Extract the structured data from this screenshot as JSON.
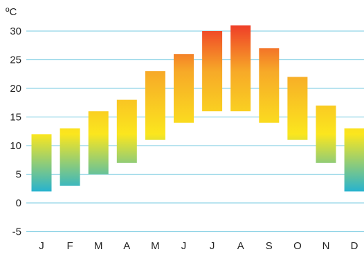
{
  "chart_data": {
    "type": "bar",
    "subtype": "floating-range",
    "unit_label": "ºC",
    "categories": [
      "J",
      "F",
      "M",
      "A",
      "M",
      "J",
      "J",
      "A",
      "S",
      "O",
      "N",
      "D"
    ],
    "series": [
      {
        "low": [
          2,
          3,
          5,
          7,
          11,
          14,
          16,
          16,
          14,
          11,
          7,
          2
        ],
        "high": [
          12,
          13,
          16,
          18,
          23,
          26,
          30,
          31,
          27,
          22,
          17,
          13
        ]
      }
    ],
    "y_ticks": [
      "30",
      "25",
      "20",
      "15",
      "10",
      "5",
      "0",
      "-5"
    ],
    "ylim": [
      -7,
      33
    ],
    "grid": true,
    "colors": {
      "grid": "#8fd3e6",
      "cold": "#27b3cf",
      "mild": "#fbe61e",
      "warm": "#f7a928",
      "hot": "#ef3e28"
    }
  }
}
